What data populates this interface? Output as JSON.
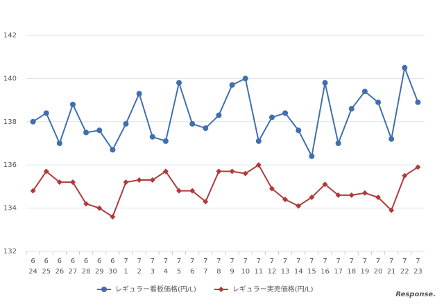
{
  "chart_data": {
    "type": "line",
    "categories": [
      [
        "6",
        "24"
      ],
      [
        "6",
        "25"
      ],
      [
        "6",
        "26"
      ],
      [
        "6",
        "27"
      ],
      [
        "6",
        "28"
      ],
      [
        "6",
        "29"
      ],
      [
        "6",
        "30"
      ],
      [
        "7",
        "1"
      ],
      [
        "7",
        "2"
      ],
      [
        "7",
        "3"
      ],
      [
        "7",
        "4"
      ],
      [
        "7",
        "5"
      ],
      [
        "7",
        "6"
      ],
      [
        "7",
        "7"
      ],
      [
        "7",
        "8"
      ],
      [
        "7",
        "9"
      ],
      [
        "7",
        "10"
      ],
      [
        "7",
        "11"
      ],
      [
        "7",
        "12"
      ],
      [
        "7",
        "13"
      ],
      [
        "7",
        "14"
      ],
      [
        "7",
        "15"
      ],
      [
        "7",
        "16"
      ],
      [
        "7",
        "17"
      ],
      [
        "7",
        "18"
      ],
      [
        "7",
        "19"
      ],
      [
        "7",
        "20"
      ],
      [
        "7",
        "21"
      ],
      [
        "7",
        "22"
      ],
      [
        "7",
        "23"
      ]
    ],
    "series": [
      {
        "name": "レギュラー看板価格(円/L)",
        "color": "#3f6fae",
        "marker": "circle",
        "values": [
          138.0,
          138.4,
          137.0,
          138.8,
          137.5,
          137.6,
          136.7,
          137.9,
          139.3,
          137.3,
          137.1,
          139.8,
          137.9,
          137.7,
          138.3,
          139.7,
          140.0,
          137.1,
          138.2,
          138.4,
          137.6,
          136.4,
          139.8,
          137.0,
          138.6,
          139.4,
          138.9,
          137.2,
          140.5,
          138.9
        ]
      },
      {
        "name": "レギュラー実売価格(円/L)",
        "color": "#b03a3a",
        "marker": "diamond",
        "values": [
          134.8,
          135.7,
          135.2,
          135.2,
          134.2,
          134.0,
          133.6,
          135.2,
          135.3,
          135.3,
          135.7,
          134.8,
          134.8,
          134.3,
          135.7,
          135.7,
          135.6,
          136.0,
          134.9,
          134.4,
          134.1,
          134.5,
          135.1,
          134.6,
          134.6,
          134.7,
          134.5,
          133.9,
          135.5,
          135.9
        ]
      }
    ],
    "ylim": [
      132,
      142
    ],
    "yticks": [
      132,
      134,
      136,
      138,
      140,
      142
    ],
    "grid": true,
    "legend": "bottom",
    "watermark": "Response."
  }
}
